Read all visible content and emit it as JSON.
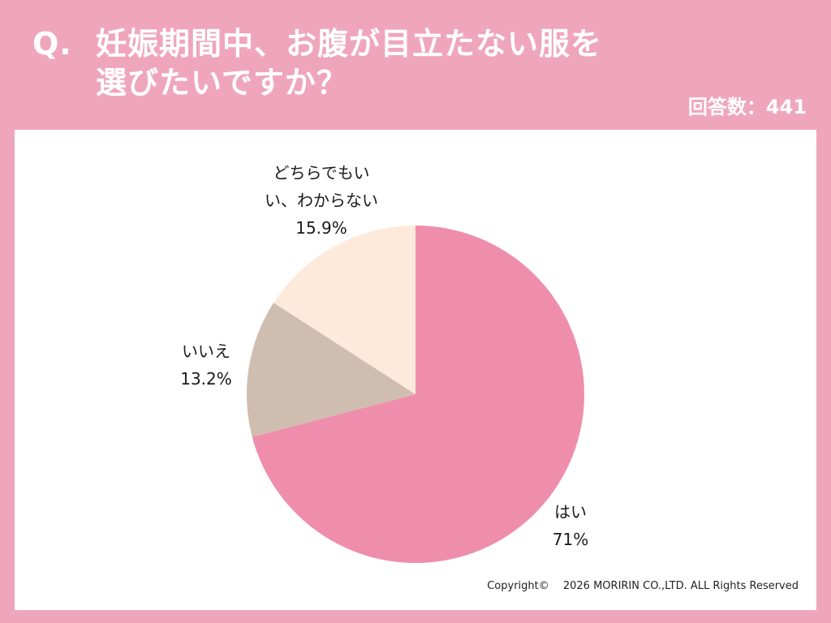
{
  "header": {
    "q_mark": "Q.",
    "title_line1": "妊娠期間中、お腹が目立たない服を",
    "title_line2": "選びたいですか？",
    "response_count": "回答数：441"
  },
  "chart_data": {
    "type": "pie",
    "slices": [
      {
        "label": "はい",
        "value": 71,
        "display": "71%",
        "color": "#ef8eac"
      },
      {
        "label": "いいえ",
        "value": 13.2,
        "display": "13.2%",
        "color": "#cfbeaf"
      },
      {
        "label_lines": [
          "どちらでもい",
          "い、わからない"
        ],
        "label": "どちらでもいい、わからない",
        "value": 15.9,
        "display": "15.9%",
        "color": "#fdeadb"
      }
    ],
    "start": "12 o'clock",
    "direction": "clockwise"
  },
  "footer": {
    "copyright": "Copyright©　 2026 MORIRIN CO.,LTD. ALL Rights Reserved"
  },
  "colors": {
    "background": "#efa6bd",
    "panel": "#ffffff",
    "title_text": "#ffffff"
  }
}
